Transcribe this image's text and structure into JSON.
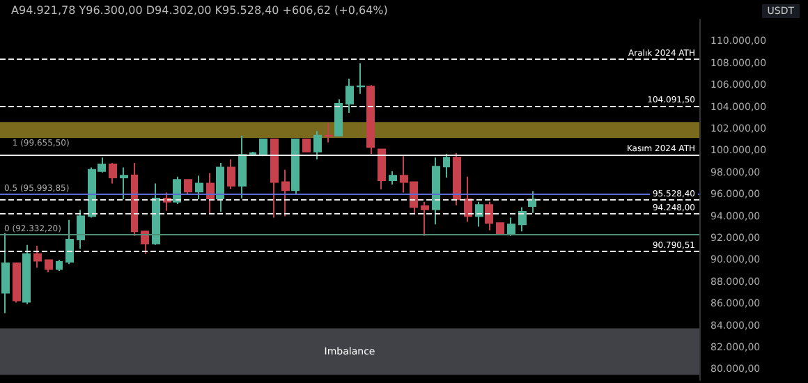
{
  "chart_data": {
    "type": "candlestick",
    "subtitle": "A94.921,78 Y96.300,00 D94.302,00 K95.528,40 +606,62 (+0,64%)",
    "annotations": [
      "USDT",
      {
        "text": "1 (99.655,50)",
        "y": 99655.5
      }
    ],
    "categories": [
      null,
      null,
      null,
      null,
      null,
      null,
      null,
      null,
      null,
      null,
      null,
      null,
      null,
      null,
      null,
      null,
      null,
      null,
      null,
      null,
      null,
      null,
      null,
      null,
      null,
      null,
      null,
      null,
      null,
      null,
      null,
      null,
      null,
      null,
      null,
      null,
      null,
      null,
      null,
      null,
      null,
      null,
      null,
      null,
      null,
      null,
      null,
      null,
      null,
      null,
      null,
      null,
      null,
      null,
      null,
      null,
      null,
      null,
      null,
      null,
      null,
      null,
      null,
      null,
      null
    ],
    "ohlc": [
      [
        87000,
        92830,
        85125,
        89710
      ],
      [
        89700,
        89700,
        86100,
        86290
      ],
      [
        86165,
        91375,
        85960,
        90540
      ],
      [
        90540,
        91290,
        89290,
        89920
      ],
      [
        89990,
        89990,
        88875,
        89165
      ],
      [
        89165,
        90000,
        89000,
        89830
      ],
      [
        89830,
        93665,
        89625,
        91875
      ],
      [
        91875,
        94580,
        91040,
        94000
      ],
      [
        94000,
        98460,
        93875,
        98250
      ],
      [
        98125,
        99375,
        98000,
        98750
      ],
      [
        98750,
        98875,
        97000,
        97540
      ],
      [
        97540,
        98460,
        95540,
        97710
      ],
      [
        97750,
        98875,
        92210,
        92625
      ],
      [
        92625,
        92625,
        90540,
        91500
      ],
      [
        91500,
        97000,
        91375,
        95625
      ],
      [
        95625,
        96165,
        94500,
        95330
      ],
      [
        95330,
        97625,
        95125,
        97330
      ],
      [
        97330,
        97330,
        95960,
        96250
      ],
      [
        96250,
        97710,
        95540,
        97000
      ],
      [
        97000,
        97960,
        94165,
        95625
      ],
      [
        95625,
        98875,
        94415,
        98460
      ],
      [
        98460,
        99210,
        96500,
        96790
      ],
      [
        96790,
        101375,
        95625,
        99625
      ],
      [
        99710,
        99900,
        99600,
        99790
      ],
      [
        99710,
        101040,
        99500,
        101040
      ],
      [
        101040,
        101040,
        93875,
        97125
      ],
      [
        97125,
        98250,
        94000,
        96375
      ],
      [
        96375,
        101040,
        96000,
        101040
      ],
      [
        101040,
        101040,
        99915,
        99915
      ],
      [
        99915,
        101790,
        99210,
        101375
      ],
      [
        101375,
        102540,
        100750,
        101330
      ],
      [
        101375,
        104710,
        101375,
        104290
      ],
      [
        104290,
        106580,
        103460,
        105875
      ],
      [
        105875,
        108000,
        105200,
        105900
      ],
      [
        105875,
        106000,
        99710,
        100330
      ],
      [
        100125,
        100125,
        96460,
        97290
      ],
      [
        97290,
        98125,
        96900,
        97710
      ],
      [
        97710,
        99500,
        96170,
        97125
      ],
      [
        97125,
        97125,
        94290,
        94830
      ],
      [
        94920,
        95330,
        92210,
        94625
      ],
      [
        94625,
        99375,
        93250,
        98540
      ],
      [
        98540,
        99710,
        97540,
        99375
      ],
      [
        99375,
        99790,
        95000,
        95540
      ],
      [
        95540,
        97625,
        93500,
        94000
      ],
      [
        94000,
        95330,
        93040,
        95040
      ],
      [
        95040,
        95330,
        92710,
        93375
      ],
      [
        93375,
        93375,
        92300,
        92415
      ],
      [
        92415,
        93875,
        92200,
        93250
      ],
      [
        93250,
        94830,
        92625,
        94415
      ],
      [
        94921.78,
        96300,
        94302,
        95528.4
      ],
      null,
      null,
      null,
      null,
      null,
      null,
      null,
      null,
      null,
      null,
      null,
      null,
      null,
      null,
      null
    ],
    "colors": [
      "#4fb39a",
      "#c8424d",
      "#4fb39a",
      "#c8424d",
      "#c8424d",
      "#4fb39a",
      "#4fb39a",
      "#4fb39a",
      "#4fb39a",
      "#4fb39a",
      "#c8424d",
      "#4fb39a",
      "#c8424d",
      "#c8424d",
      "#4fb39a",
      "#c8424d",
      "#4fb39a",
      "#c8424d",
      "#4fb39a",
      "#c8424d",
      "#4fb39a",
      "#c8424d",
      "#4fb39a",
      "#4fb39a",
      "#4fb39a",
      "#c8424d",
      "#c8424d",
      "#4fb39a",
      "#c8424d",
      "#4fb39a",
      "#c8424d",
      "#4fb39a",
      "#4fb39a",
      "#4fb39a",
      "#c8424d",
      "#c8424d",
      "#4fb39a",
      "#c8424d",
      "#c8424d",
      "#c8424d",
      "#4fb39a",
      "#4fb39a",
      "#c8424d",
      "#c8424d",
      "#4fb39a",
      "#c8424d",
      "#c8424d",
      "#4fb39a",
      "#4fb39a",
      "#4fb39a",
      null,
      null,
      null,
      null,
      null,
      null,
      null,
      null,
      null,
      null,
      null,
      null,
      null,
      null,
      null
    ],
    "ylim": [
      79000,
      112000
    ],
    "yticks": [
      {
        "value": 80000,
        "label": "80.000,00"
      },
      {
        "value": 82000,
        "label": "82.000,00"
      },
      {
        "value": 84000,
        "label": "84.000,00"
      },
      {
        "value": 86000,
        "label": "86.000,00"
      },
      {
        "value": 88000,
        "label": "88.000,00"
      },
      {
        "value": 90000,
        "label": "90.000,00"
      },
      {
        "value": 92000,
        "label": "92.000,00"
      },
      {
        "value": 94000,
        "label": "94.000,00"
      },
      {
        "value": 96000,
        "label": "96.000,00"
      },
      {
        "value": 98000,
        "label": "98.000,00"
      },
      {
        "value": 100000,
        "label": "100.000,00"
      },
      {
        "value": 102000,
        "label": "102.000,00"
      },
      {
        "value": 104000,
        "label": "104.000,00"
      },
      {
        "value": 106000,
        "label": "106.000,00"
      },
      {
        "value": 108000,
        "label": "108.000,00"
      },
      {
        "value": 110000,
        "label": "110.000,00"
      }
    ],
    "tick_labels": "y",
    "ref_lines": [
      {
        "axis": "y",
        "value": 108353,
        "label": "Aralık 2024 ATH",
        "line_style": "dashed"
      },
      {
        "axis": "y",
        "value": 104091.5,
        "label": "104.091,50",
        "line_style": "dashed"
      },
      {
        "axis": "y",
        "value": 99655.5,
        "label": "Kasım 2024 ATH",
        "line_style": "solid"
      },
      {
        "axis": "y",
        "value": 95528.4,
        "label": "95.528,40",
        "line_style": "dashed"
      },
      {
        "axis": "y",
        "value": 94248,
        "label": "94.248,00",
        "line_style": "dashed"
      },
      {
        "axis": "y",
        "value": 90790.51,
        "label": "90.790,51",
        "line_style": "dashed"
      },
      {
        "axis": "y",
        "value": 95993.85,
        "label": "0.5 (95.993,85)",
        "color": "#5b6bd6",
        "line_style": "solid"
      },
      {
        "axis": "y",
        "value": 92332.2,
        "label": "0 (92.332,20)",
        "color": "#4f8f78",
        "line_style": "solid"
      }
    ],
    "bands": [
      {
        "axis": "y",
        "from": 101165,
        "to": 102625,
        "label": null,
        "color": "#807020"
      },
      {
        "axis": "y",
        "from": 79500,
        "to": 83750,
        "label": "Imbalance",
        "color": "#45464b"
      }
    ]
  }
}
